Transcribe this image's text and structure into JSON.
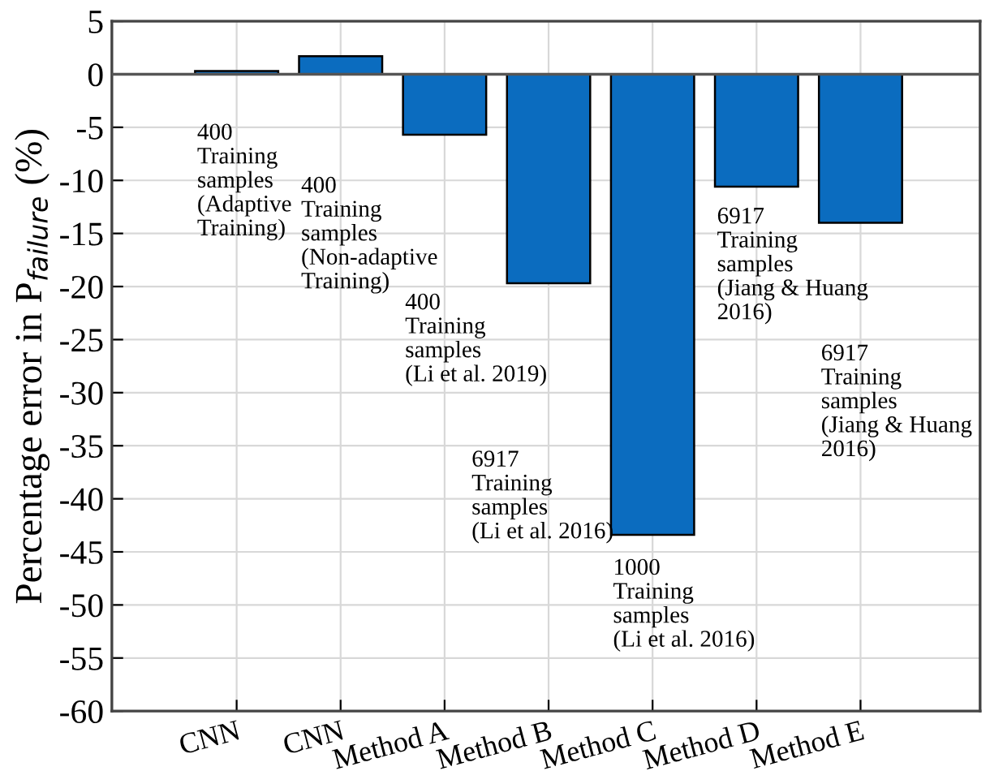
{
  "chart_data": {
    "type": "bar",
    "ylabel": "Percentage error in P$_{failure}$ (%)",
    "categories": [
      "CNN",
      "CNN",
      "Method A",
      "Method B",
      "Method C",
      "Method D",
      "Method E"
    ],
    "values": [
      0.3,
      1.7,
      -5.7,
      -19.7,
      -43.4,
      -10.6,
      -14.0
    ],
    "color": "#0b6cbf",
    "ylim": [
      -60,
      5
    ],
    "yticks": [
      5,
      0,
      -5,
      -10,
      -15,
      -20,
      -25,
      -30,
      -35,
      -40,
      -45,
      -50,
      -55,
      -60
    ],
    "grid": true,
    "annotations": [
      "400\nTraining\nsamples\n(Adaptive\nTraining)",
      "400\nTraining\nsamples\n(Non-adaptive\nTraining)",
      "400\nTraining\nsamples\n(Li et al. 2019)",
      "6917\nTraining\nsamples\n(Li et al. 2016)",
      "1000\nTraining\nsamples\n(Li et al. 2016)",
      "6917\nTraining\nsamples\n(Jiang & Huang\n2016)",
      "6917\nTraining\nsamples\n(Jiang & Huang\n2016)"
    ]
  }
}
